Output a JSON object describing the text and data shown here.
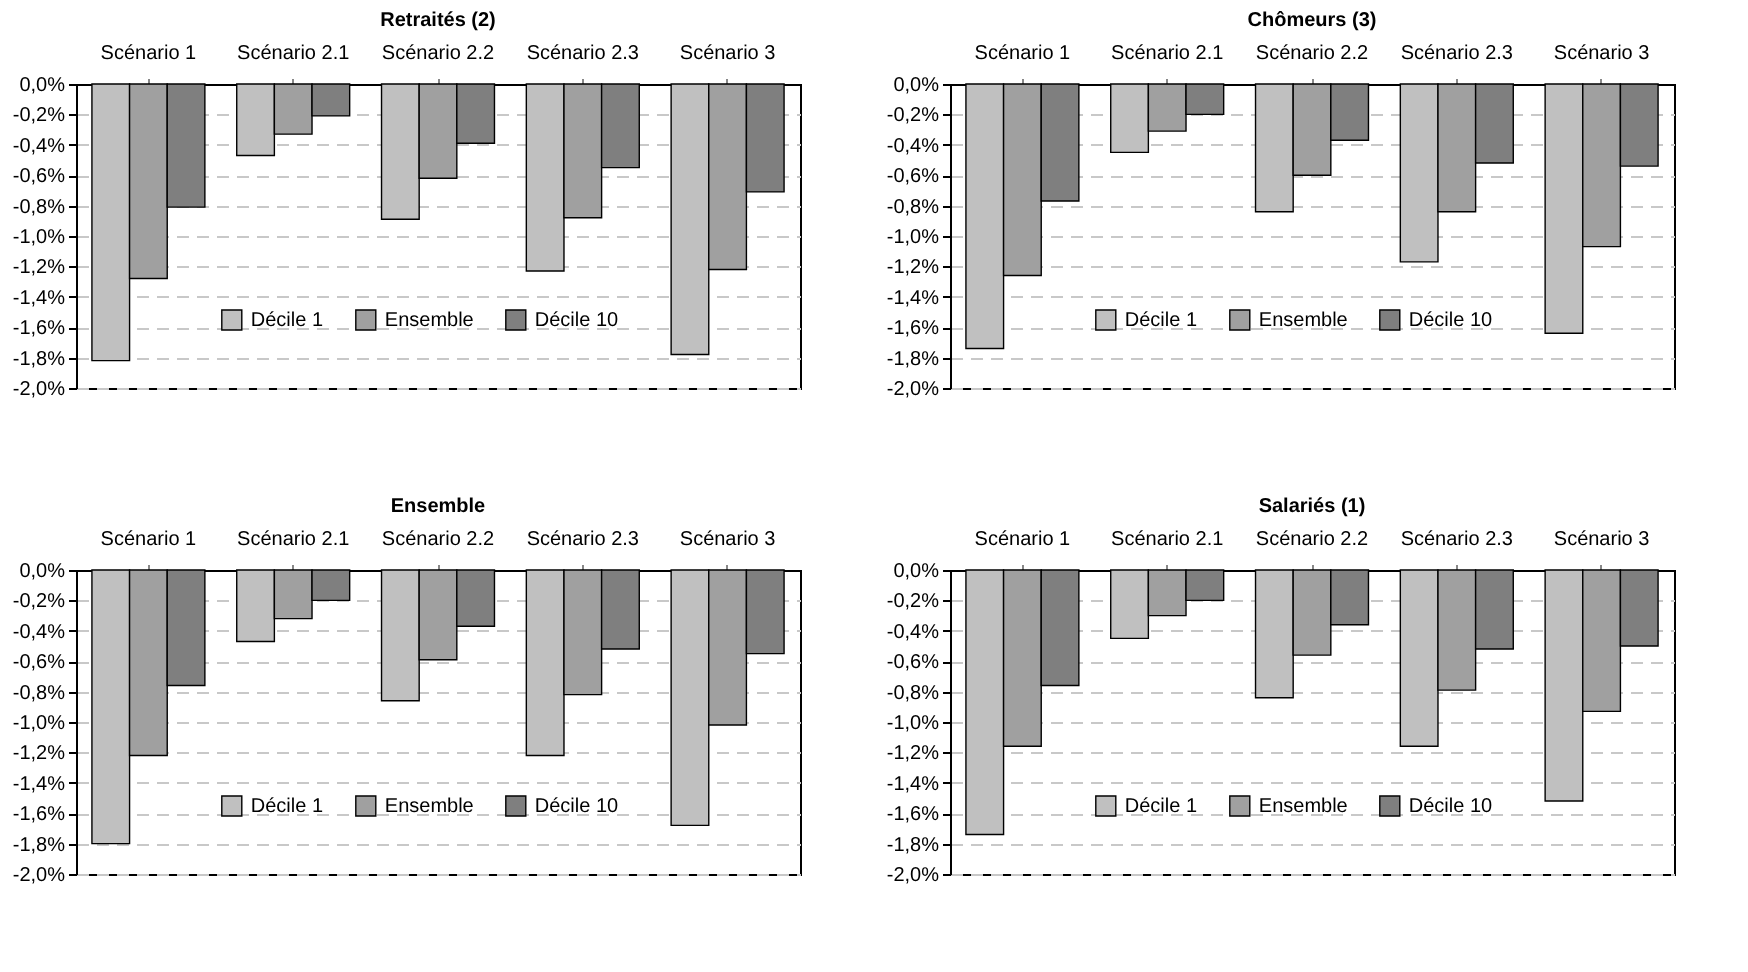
{
  "chart_data": [
    {
      "type": "bar",
      "title": "Retraités (2)",
      "categories": [
        "Scénario 1",
        "Scénario 2.1",
        "Scénario 2.2",
        "Scénario 2.3",
        "Scénario 3"
      ],
      "series": [
        {
          "name": "Décile 1",
          "color": "#c0c0c0",
          "values": [
            -1.82,
            -0.47,
            -0.89,
            -1.23,
            -1.78
          ]
        },
        {
          "name": "Ensemble",
          "color": "#a0a0a0",
          "values": [
            -1.28,
            -0.33,
            -0.62,
            -0.88,
            -1.22
          ]
        },
        {
          "name": "Décile 10",
          "color": "#7f7f7f",
          "values": [
            -0.81,
            -0.21,
            -0.39,
            -0.55,
            -0.71
          ]
        }
      ],
      "ylim": [
        -2,
        0
      ],
      "yticks": [
        {
          "value": 0,
          "label": "0,0%"
        },
        {
          "value": -0.2,
          "label": "-0,2%"
        },
        {
          "value": -0.4,
          "label": "-0,4%"
        },
        {
          "value": -0.6,
          "label": "-0,6%"
        },
        {
          "value": -0.8,
          "label": "-0,8%"
        },
        {
          "value": -1.0,
          "label": "-1,0%"
        },
        {
          "value": -1.2,
          "label": "-1,2%"
        },
        {
          "value": -1.4,
          "label": "-1,4%"
        },
        {
          "value": -1.6,
          "label": "-1,6%"
        },
        {
          "value": -1.8,
          "label": "-1,8%"
        },
        {
          "value": -2.0,
          "label": "-2,0%"
        }
      ],
      "grid": "y",
      "legend": "bottom"
    },
    {
      "type": "bar",
      "title": "Chômeurs (3)",
      "categories": [
        "Scénario 1",
        "Scénario 2.1",
        "Scénario 2.2",
        "Scénario 2.3",
        "Scénario 3"
      ],
      "series": [
        {
          "name": "Décile 1",
          "color": "#c0c0c0",
          "values": [
            -1.74,
            -0.45,
            -0.84,
            -1.17,
            -1.64
          ]
        },
        {
          "name": "Ensemble",
          "color": "#a0a0a0",
          "values": [
            -1.26,
            -0.31,
            -0.6,
            -0.84,
            -1.07
          ]
        },
        {
          "name": "Décile 10",
          "color": "#7f7f7f",
          "values": [
            -0.77,
            -0.2,
            -0.37,
            -0.52,
            -0.54
          ]
        }
      ],
      "ylim": [
        -2,
        0
      ],
      "yticks": [
        {
          "value": 0,
          "label": "0,0%"
        },
        {
          "value": -0.2,
          "label": "-0,2%"
        },
        {
          "value": -0.4,
          "label": "-0,4%"
        },
        {
          "value": -0.6,
          "label": "-0,6%"
        },
        {
          "value": -0.8,
          "label": "-0,8%"
        },
        {
          "value": -1.0,
          "label": "-1,0%"
        },
        {
          "value": -1.2,
          "label": "-1,2%"
        },
        {
          "value": -1.4,
          "label": "-1,4%"
        },
        {
          "value": -1.6,
          "label": "-1,6%"
        },
        {
          "value": -1.8,
          "label": "-1,8%"
        },
        {
          "value": -2.0,
          "label": "-2,0%"
        }
      ],
      "grid": "y",
      "legend": "bottom"
    },
    {
      "type": "bar",
      "title": "Ensemble",
      "categories": [
        "Scénario 1",
        "Scénario 2.1",
        "Scénario 2.2",
        "Scénario 2.3",
        "Scénario 3"
      ],
      "series": [
        {
          "name": "Décile 1",
          "color": "#c0c0c0",
          "values": [
            -1.8,
            -0.47,
            -0.86,
            -1.22,
            -1.68
          ]
        },
        {
          "name": "Ensemble",
          "color": "#a0a0a0",
          "values": [
            -1.22,
            -0.32,
            -0.59,
            -0.82,
            -1.02
          ]
        },
        {
          "name": "Décile 10",
          "color": "#7f7f7f",
          "values": [
            -0.76,
            -0.2,
            -0.37,
            -0.52,
            -0.55
          ]
        }
      ],
      "ylim": [
        -2,
        0
      ],
      "yticks": [
        {
          "value": 0,
          "label": "0,0%"
        },
        {
          "value": -0.2,
          "label": "-0,2%"
        },
        {
          "value": -0.4,
          "label": "-0,4%"
        },
        {
          "value": -0.6,
          "label": "-0,6%"
        },
        {
          "value": -0.8,
          "label": "-0,8%"
        },
        {
          "value": -1.0,
          "label": "-1,0%"
        },
        {
          "value": -1.2,
          "label": "-1,2%"
        },
        {
          "value": -1.4,
          "label": "-1,4%"
        },
        {
          "value": -1.6,
          "label": "-1,6%"
        },
        {
          "value": -1.8,
          "label": "-1,8%"
        },
        {
          "value": -2.0,
          "label": "-2,0%"
        }
      ],
      "grid": "y",
      "legend": "bottom"
    },
    {
      "type": "bar",
      "title": "Salariés (1)",
      "categories": [
        "Scénario 1",
        "Scénario 2.1",
        "Scénario 2.2",
        "Scénario 2.3",
        "Scénario 3"
      ],
      "series": [
        {
          "name": "Décile 1",
          "color": "#c0c0c0",
          "values": [
            -1.74,
            -0.45,
            -0.84,
            -1.16,
            -1.52
          ]
        },
        {
          "name": "Ensemble",
          "color": "#a0a0a0",
          "values": [
            -1.16,
            -0.3,
            -0.56,
            -0.79,
            -0.93
          ]
        },
        {
          "name": "Décile 10",
          "color": "#7f7f7f",
          "values": [
            -0.76,
            -0.2,
            -0.36,
            -0.52,
            -0.5
          ]
        }
      ],
      "ylim": [
        -2,
        0
      ],
      "yticks": [
        {
          "value": 0,
          "label": "0,0%"
        },
        {
          "value": -0.2,
          "label": "-0,2%"
        },
        {
          "value": -0.4,
          "label": "-0,4%"
        },
        {
          "value": -0.6,
          "label": "-0,6%"
        },
        {
          "value": -0.8,
          "label": "-0,8%"
        },
        {
          "value": -1.0,
          "label": "-1,0%"
        },
        {
          "value": -1.2,
          "label": "-1,2%"
        },
        {
          "value": -1.4,
          "label": "-1,4%"
        },
        {
          "value": -1.6,
          "label": "-1,6%"
        },
        {
          "value": -1.8,
          "label": "-1,8%"
        },
        {
          "value": -2.0,
          "label": "-2,0%"
        }
      ],
      "grid": "y",
      "legend": "bottom"
    }
  ]
}
